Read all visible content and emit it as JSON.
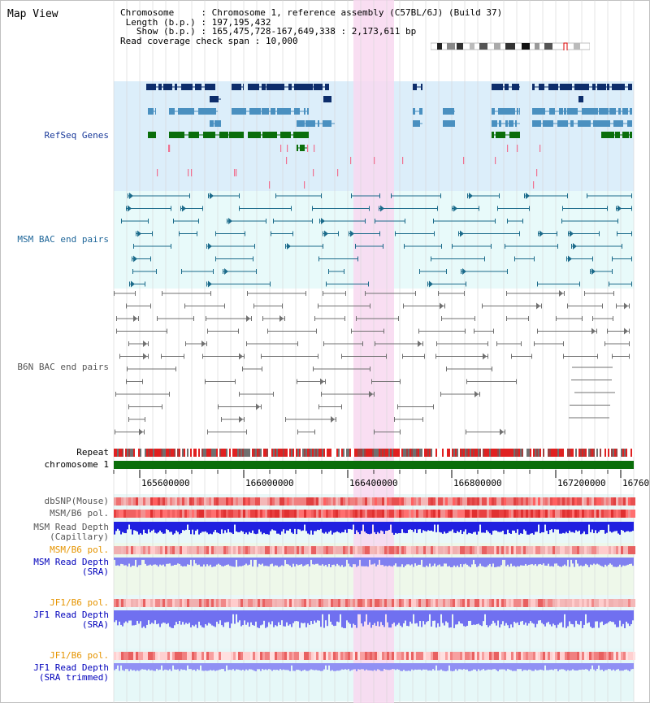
{
  "title": "Map View",
  "info": {
    "chromosome_label": "Chromosome",
    "chromosome_value": "Chromosome 1, reference assembly (C57BL/6J) (Build 37)",
    "length_label": "Length (b.p.)",
    "length_value": "197,195,432",
    "show_label": "Show (b.p.)",
    "show_value": "165,475,728-167,649,338 : 2,173,611 bp",
    "coverage_label": "Read coverage check span",
    "coverage_value": "10,000"
  },
  "tracks": {
    "refseq": "RefSeq Genes",
    "msm_bac": "MSM BAC end pairs",
    "b6n_bac": "B6N BAC end pairs",
    "repeat": "Repeat",
    "chromosome": "chromosome 1",
    "dbsnp": "dbSNP(Mouse)",
    "msm_b6_pol": "MSM/B6 pol.",
    "msm_depth_cap_1": "MSM Read Depth",
    "msm_depth_cap_2": "(Capillary)",
    "msm_b6_pol_2": "MSM/B6 pol.",
    "msm_depth_sra_1": "MSM Read Depth",
    "msm_depth_sra_2": "(SRA)",
    "jf1_b6_pol": "JF1/B6 pol.",
    "jf1_depth_sra_1": "JF1 Read Depth",
    "jf1_depth_sra_2": "(SRA)",
    "jf1_b6_pol_2": "JF1/B6 pol.",
    "jf1_depth_trim_1": "JF1 Read Depth",
    "jf1_depth_trim_2": "(SRA trimmed)"
  },
  "axis": {
    "ticks": [
      "165600000",
      "166000000",
      "166400000",
      "166800000",
      "167200000",
      "16760"
    ]
  },
  "colors": {
    "refseq_bg": "#dceefa",
    "bac_bg": "#e8fafa",
    "highlight": "#f8d8f0",
    "gene_dark": "#0d2d6b",
    "gene_mid": "#4a90c0",
    "gene_green": "#0a6e0a",
    "chrom_bar": "#0a6e0a",
    "msm_pair": "#1a6a8a",
    "b6n_pair": "#707070",
    "depth_blue": "#2020e0",
    "depth_light": "#8080f0"
  }
}
